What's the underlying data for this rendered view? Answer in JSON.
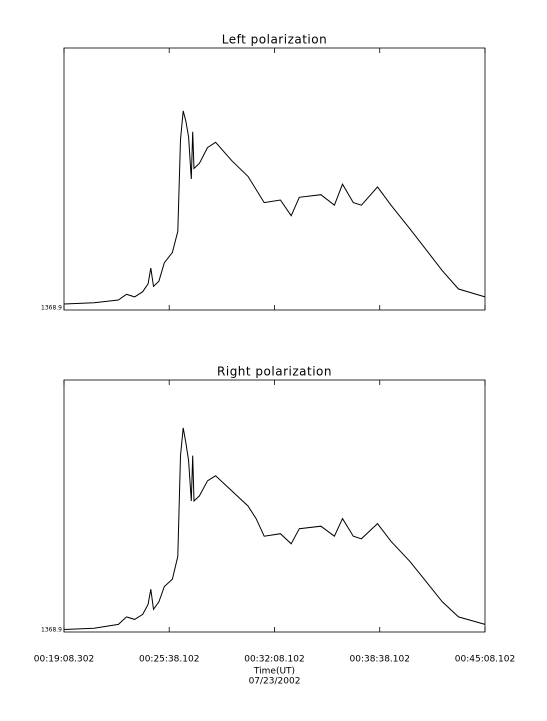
{
  "chart_data": [
    {
      "type": "line",
      "title": "Left polarization",
      "channel_label": "1368.9",
      "x": [
        "00:19:08",
        "00:21:00",
        "00:22:30",
        "00:23:00",
        "00:23:30",
        "00:24:00",
        "00:24:20",
        "00:24:30",
        "00:24:40",
        "00:25:00",
        "00:25:20",
        "00:25:50",
        "00:26:10",
        "00:26:20",
        "00:26:30",
        "00:26:40",
        "00:26:50",
        "00:27:00",
        "00:27:05",
        "00:27:10",
        "00:27:30",
        "00:28:00",
        "00:28:30",
        "00:29:30",
        "00:30:30",
        "00:31:00",
        "00:31:30",
        "00:32:30",
        "00:33:10",
        "00:33:40",
        "00:35:00",
        "00:35:50",
        "00:36:20",
        "00:37:00",
        "00:37:30",
        "00:38:30",
        "00:39:20",
        "00:40:30",
        "00:41:30",
        "00:42:30",
        "00:43:30",
        "00:45:08"
      ],
      "values": [
        2.3,
        2.8,
        3.8,
        6,
        5,
        7,
        10,
        16,
        9,
        11,
        18,
        22,
        30,
        65,
        76,
        72,
        66,
        50,
        68,
        54,
        56,
        62,
        64,
        57,
        51,
        46,
        41,
        42,
        36,
        43,
        44,
        40,
        48,
        41,
        40,
        47,
        40,
        31,
        23,
        15,
        8,
        5
      ],
      "xlim": [
        "00:19:08.302",
        "00:45:08.102"
      ],
      "xticks": [
        "00:19:08.302",
        "00:25:38.102",
        "00:32:08.102",
        "00:38:38.102",
        "00:45:08.102"
      ],
      "ylim": [
        0,
        100
      ]
    },
    {
      "type": "line",
      "title": "Right polarization",
      "channel_label": "1368.9",
      "xlabel": "Time(UT)",
      "date": "07/23/2002",
      "x": [
        "00:19:08",
        "00:21:00",
        "00:22:30",
        "00:23:00",
        "00:23:30",
        "00:24:00",
        "00:24:20",
        "00:24:30",
        "00:24:40",
        "00:25:00",
        "00:25:20",
        "00:25:50",
        "00:26:10",
        "00:26:20",
        "00:26:30",
        "00:26:40",
        "00:26:50",
        "00:27:00",
        "00:27:05",
        "00:27:10",
        "00:27:30",
        "00:28:00",
        "00:28:30",
        "00:29:30",
        "00:30:30",
        "00:31:00",
        "00:31:30",
        "00:32:30",
        "00:33:10",
        "00:33:40",
        "00:35:00",
        "00:35:50",
        "00:36:20",
        "00:37:00",
        "00:37:30",
        "00:38:30",
        "00:39:20",
        "00:40:30",
        "00:41:30",
        "00:42:30",
        "00:43:30",
        "00:45:08"
      ],
      "values": [
        1,
        1.5,
        3,
        6,
        5,
        7,
        11,
        17,
        9,
        12,
        18,
        21,
        30,
        70,
        81,
        75,
        68,
        52,
        70,
        52,
        54,
        60,
        62,
        56,
        50,
        45,
        38,
        39,
        35,
        41,
        42,
        38,
        45,
        38,
        37,
        43,
        36,
        28,
        20,
        12,
        6,
        3
      ],
      "xlim": [
        "00:19:08.302",
        "00:45:08.102"
      ],
      "xticks": [
        "00:19:08.302",
        "00:25:38.102",
        "00:32:08.102",
        "00:38:38.102",
        "00:45:08.102"
      ],
      "ylim": [
        0,
        100
      ]
    }
  ]
}
